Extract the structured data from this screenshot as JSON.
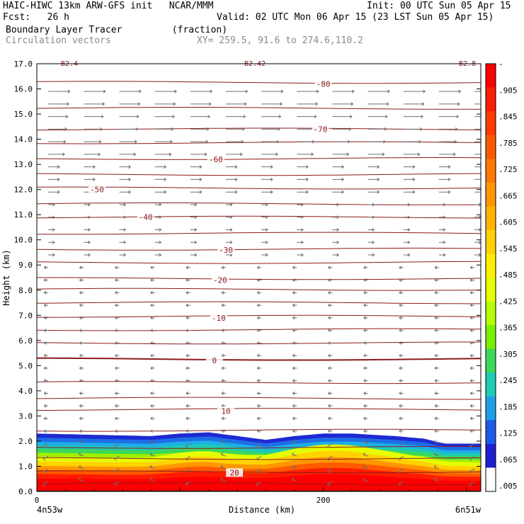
{
  "header": {
    "model_line": "HAIC-HIWC 13km ARW-GFS init   NCAR/MMM",
    "init_line": "Init: 00 UTC Sun 05 Apr 15",
    "fcst_line": "Fcst:   26 h",
    "valid_line": "Valid: 02 UTC Mon 06 Apr 15 (23 LST Sun 05 Apr 15)",
    "field_line": "Boundary Layer Tracer         (fraction)",
    "vector_line": "Circulation vectors",
    "xy_line": "XY= 259.5, 91.6 to 274.6,110.2"
  },
  "footer": {
    "left_location": "4n53w",
    "right_location": "6n51w"
  },
  "chart_data": {
    "type": "heatmap",
    "title": "Boundary Layer Tracer",
    "units": "fraction",
    "xlabel": "Distance (km)",
    "ylabel": "Height (km)",
    "xlim": [
      0,
      310
    ],
    "ylim": [
      0,
      17
    ],
    "x_ticks": [
      0,
      200
    ],
    "y_ticks": [
      "0.0",
      "1.0",
      "2.0",
      "3.0",
      "4.0",
      "5.0",
      "6.0",
      "7.0",
      "8.0",
      "9.0",
      "10.0",
      "11.0",
      "12.0",
      "13.0",
      "14.0",
      "15.0",
      "16.0",
      "17.0"
    ],
    "colorbar_labels": [
      "-",
      ".905",
      ".845",
      ".785",
      ".725",
      ".665",
      ".605",
      ".545",
      ".485",
      ".425",
      ".365",
      ".305",
      ".245",
      ".185",
      ".125",
      ".065",
      ".005"
    ],
    "colorbar_colors": [
      "#ff0000",
      "#ff1c00",
      "#ff3a00",
      "#ff5a00",
      "#ff7800",
      "#ff9600",
      "#ffb400",
      "#ffd200",
      "#fff000",
      "#e6ff00",
      "#b4ff00",
      "#78f000",
      "#3cd85a",
      "#1ecbb4",
      "#1ea0e6",
      "#1e5ae6",
      "#1e1ed2",
      "#ffffff"
    ],
    "tracer_top_km": [
      [
        0,
        2.3
      ],
      [
        40,
        2.25
      ],
      [
        80,
        2.2
      ],
      [
        100,
        2.3
      ],
      [
        120,
        2.35
      ],
      [
        140,
        2.2
      ],
      [
        160,
        2.05
      ],
      [
        180,
        2.2
      ],
      [
        200,
        2.3
      ],
      [
        220,
        2.3
      ],
      [
        250,
        2.2
      ],
      [
        270,
        2.1
      ],
      [
        285,
        1.9
      ],
      [
        310,
        1.9
      ]
    ],
    "temperature_contour_labels": [
      {
        "label": "-80",
        "x": 200,
        "y": 16.2
      },
      {
        "label": "-70",
        "x": 198,
        "y": 14.4
      },
      {
        "label": "-60",
        "x": 125,
        "y": 13.2
      },
      {
        "label": "-50",
        "x": 42,
        "y": 12.0
      },
      {
        "label": "-40",
        "x": 76,
        "y": 10.9
      },
      {
        "label": "-30",
        "x": 132,
        "y": 9.6
      },
      {
        "label": "-20",
        "x": 128,
        "y": 8.4
      },
      {
        "label": "-10",
        "x": 127,
        "y": 6.9
      },
      {
        "label": "0",
        "x": 124,
        "y": 5.2
      },
      {
        "label": "10",
        "x": 132,
        "y": 3.2
      },
      {
        "label": "20",
        "x": 138,
        "y": 0.75
      }
    ],
    "top_edge_labels": [
      "B2.4",
      "B2.42",
      "B2.8"
    ]
  }
}
